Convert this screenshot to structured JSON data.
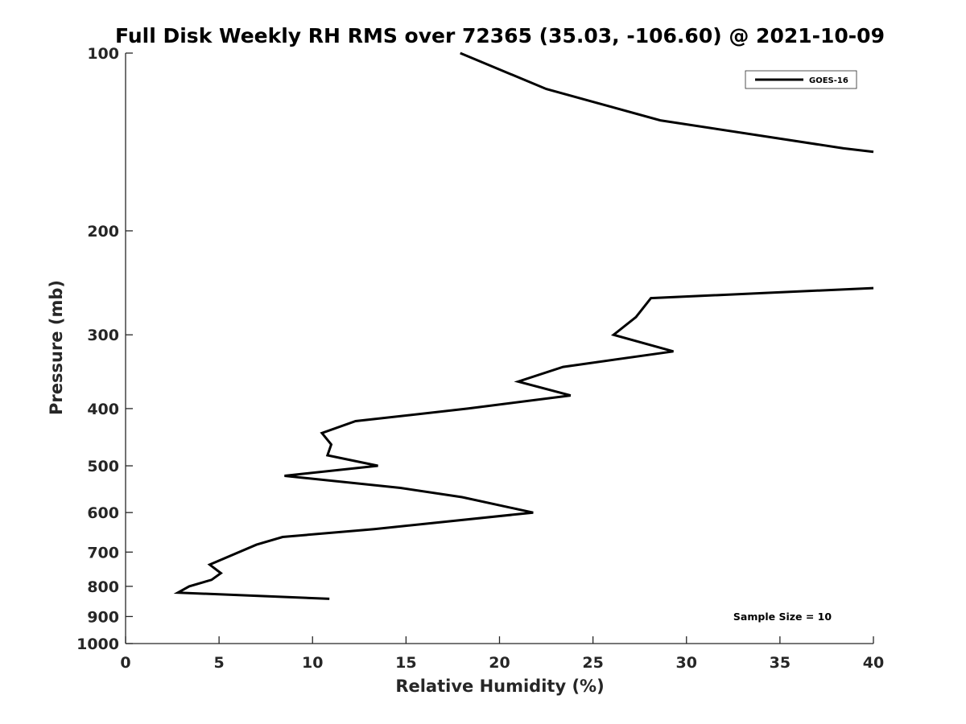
{
  "chart_data": {
    "type": "line",
    "title": "Full Disk Weekly RH RMS over 72365 (35.03, -106.60) @ 2021-10-09",
    "xlabel": "Relative Humidity (%)",
    "ylabel": "Pressure (mb)",
    "xlim": [
      0,
      40
    ],
    "ylim": [
      100,
      1000
    ],
    "yscale": "log",
    "y_direction": "reversed",
    "grid": false,
    "legend_position": "top-right",
    "x_ticks": [
      "0",
      "5",
      "10",
      "15",
      "20",
      "25",
      "30",
      "35",
      "40"
    ],
    "y_ticks": [
      "100",
      "200",
      "300",
      "400",
      "500",
      "600",
      "700",
      "800",
      "900",
      "1000"
    ],
    "annotation": "Sample Size = 10",
    "series": [
      {
        "name": "GOES-16",
        "color": "#000000",
        "segments": [
          {
            "x": [
              17.9,
              22.5,
              28.6,
              38.4,
              40
            ],
            "y": [
              100,
              115,
              130,
              145,
              147
            ]
          },
          {
            "x": [
              40,
              28.1,
              27.3,
              26.1,
              29.3,
              23.4,
              21.0,
              23.8,
              18.3,
              12.3,
              10.5,
              11.0,
              10.8,
              13.5,
              8.5,
              14.7,
              18.0,
              21.8,
              13.3,
              8.4,
              7.0,
              4.5,
              5.1,
              4.6,
              3.4,
              2.8,
              10.9
            ],
            "y": [
              250,
              260,
              280,
              300,
              320,
              340,
              360,
              380,
              400,
              420,
              440,
              460,
              480,
              500,
              520,
              545,
              565,
              600,
              640,
              660,
              680,
              735,
              760,
              780,
              800,
              820,
              840
            ]
          }
        ]
      }
    ]
  }
}
